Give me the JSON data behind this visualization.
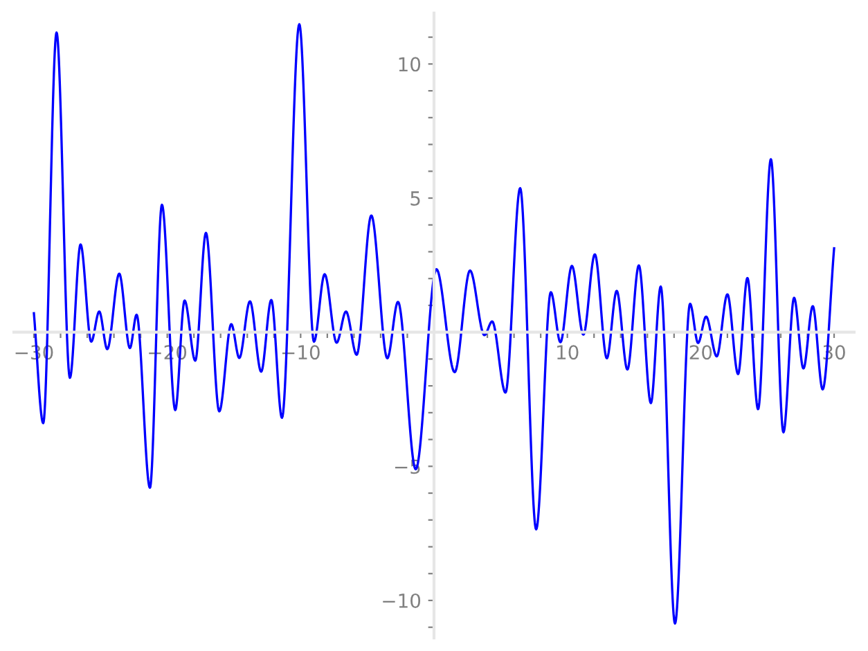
{
  "chart_data": {
    "type": "line",
    "x": [
      -30.0,
      -29.3,
      -28.3,
      -27.3,
      -26.5,
      -25.7,
      -25.1,
      -24.5,
      -23.6,
      -22.8,
      -22.3,
      -21.3,
      -20.4,
      -19.4,
      -18.7,
      -17.9,
      -17.1,
      -16.1,
      -15.2,
      -14.6,
      -13.8,
      -12.96,
      -12.2,
      -11.4,
      -10.1,
      -9.0,
      -8.2,
      -7.3,
      -6.6,
      -5.8,
      -4.7,
      -3.5,
      -2.7,
      -1.37,
      0.18,
      1.55,
      2.7,
      3.78,
      4.36,
      5.36,
      6.46,
      7.66,
      8.76,
      9.48,
      10.34,
      11.2,
      12.06,
      12.96,
      13.7,
      14.5,
      15.36,
      16.26,
      17.0,
      18.07,
      19.2,
      19.8,
      20.4,
      21.2,
      22.0,
      22.8,
      23.5,
      24.3,
      25.26,
      26.2,
      27.0,
      27.7,
      28.4,
      29.14,
      30.0
    ],
    "series": [
      {
        "color": "#0000ff",
        "values": [
          0.71,
          -3.39,
          11.17,
          -1.7,
          3.27,
          -0.35,
          0.77,
          -0.63,
          2.18,
          -0.59,
          0.65,
          -5.8,
          4.75,
          -2.9,
          1.18,
          -1.06,
          3.7,
          -2.95,
          0.3,
          -0.96,
          1.15,
          -1.47,
          1.2,
          -3.19,
          11.48,
          -0.35,
          2.16,
          -0.39,
          0.77,
          -0.84,
          4.35,
          -0.97,
          1.13,
          -5.11,
          2.35,
          -1.49,
          2.3,
          -0.11,
          0.4,
          -2.25,
          5.37,
          -7.35,
          1.49,
          -0.37,
          2.47,
          -0.09,
          2.9,
          -0.97,
          1.54,
          -1.39,
          2.49,
          -2.64,
          1.7,
          -10.86,
          1.06,
          -0.4,
          0.58,
          -0.9,
          1.41,
          -1.56,
          2.02,
          -2.87,
          6.45,
          -3.73,
          1.28,
          -1.35,
          0.97,
          -2.13,
          3.13
        ]
      }
    ],
    "xlim": [
      -31.5,
      31.5
    ],
    "ylim": [
      -11.4,
      11.9
    ],
    "xticks": [
      -30,
      {
        "value": -28,
        "label": null
      },
      {
        "value": -26,
        "label": null
      },
      {
        "value": -24,
        "label": null
      },
      {
        "value": -22,
        "label": null
      },
      -20,
      {
        "value": -18,
        "label": null
      },
      {
        "value": -16,
        "label": null
      },
      {
        "value": -14,
        "label": null
      },
      {
        "value": -12,
        "label": null
      },
      -10,
      {
        "value": -8,
        "label": null
      },
      {
        "value": -6,
        "label": null
      },
      {
        "value": -4,
        "label": null
      },
      {
        "value": -2,
        "label": null
      },
      {
        "value": 2,
        "label": null
      },
      {
        "value": 4,
        "label": null
      },
      {
        "value": 6,
        "label": null
      },
      {
        "value": 8,
        "label": null
      },
      10,
      {
        "value": 12,
        "label": null
      },
      {
        "value": 14,
        "label": null
      },
      {
        "value": 16,
        "label": null
      },
      {
        "value": 18,
        "label": null
      },
      20,
      {
        "value": 22,
        "label": null
      },
      {
        "value": 24,
        "label": null
      },
      {
        "value": 26,
        "label": null
      },
      {
        "value": 28,
        "label": null
      },
      30
    ],
    "yticks": [
      {
        "value": -11,
        "label": null
      },
      -10,
      {
        "value": -9,
        "label": null
      },
      {
        "value": -8,
        "label": null
      },
      {
        "value": -7,
        "label": null
      },
      {
        "value": -6,
        "label": null
      },
      -5,
      {
        "value": -4,
        "label": null
      },
      {
        "value": -3,
        "label": null
      },
      {
        "value": -2,
        "label": null
      },
      {
        "value": -1,
        "label": null
      },
      {
        "value": 1,
        "label": null
      },
      {
        "value": 2,
        "label": null
      },
      {
        "value": 3,
        "label": null
      },
      {
        "value": 4,
        "label": null
      },
      5,
      {
        "value": 6,
        "label": null
      },
      {
        "value": 7,
        "label": null
      },
      {
        "value": 8,
        "label": null
      },
      {
        "value": 9,
        "label": null
      },
      10,
      {
        "value": 11,
        "label": null
      }
    ],
    "grid": false,
    "legend": false,
    "marker": "none",
    "line_style": "solid"
  }
}
